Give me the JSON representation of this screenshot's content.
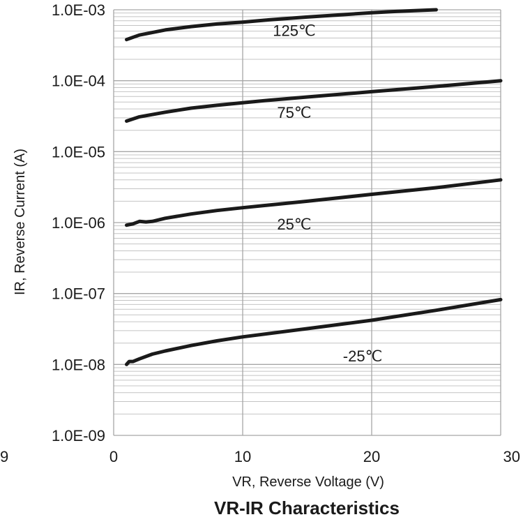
{
  "chart_data": {
    "type": "line",
    "title": "VR-IR Characteristics",
    "xlabel": "VR, Reverse Voltage (V)",
    "ylabel": "IR, Reverse Current (A)",
    "xlim": [
      0,
      30
    ],
    "ylim": [
      1e-09,
      0.001
    ],
    "yscale": "log",
    "grid": true,
    "x_ticks": [
      0,
      10,
      20,
      30
    ],
    "x_tick_labels": [
      "0",
      "10",
      "20",
      "30"
    ],
    "y_ticks": [
      1e-09,
      1e-08,
      1e-07,
      1e-06,
      1e-05,
      0.0001,
      0.001
    ],
    "y_tick_labels": [
      "1.0E-09",
      "1.0E-08",
      "1.0E-07",
      "1.0E-06",
      "1.0E-05",
      "1.0E-04",
      "1.0E-03"
    ],
    "clipped_leftmost_tick_fragment": "9",
    "series": [
      {
        "name": "125℃",
        "x": [
          1,
          2,
          4,
          6,
          8,
          10,
          12,
          15,
          18,
          20,
          22,
          25
        ],
        "y": [
          0.00038,
          0.00044,
          0.00052,
          0.00058,
          0.00063,
          0.00067,
          0.00072,
          0.00079,
          0.00086,
          0.00091,
          0.00095,
          0.001
        ]
      },
      {
        "name": "75℃",
        "x": [
          1,
          2,
          4,
          6,
          8,
          10,
          12,
          15,
          20,
          25,
          30
        ],
        "y": [
          2.7e-05,
          3.1e-05,
          3.6e-05,
          4.1e-05,
          4.5e-05,
          4.9e-05,
          5.3e-05,
          5.9e-05,
          7e-05,
          8.3e-05,
          0.0001
        ]
      },
      {
        "name": "25℃",
        "x": [
          1,
          1.5,
          2,
          2.5,
          3,
          4,
          6,
          8,
          10,
          15,
          20,
          25,
          30
        ],
        "y": [
          9.2e-07,
          9.6e-07,
          1.04e-06,
          1.02e-06,
          1.04e-06,
          1.15e-06,
          1.32e-06,
          1.48e-06,
          1.62e-06,
          2e-06,
          2.5e-06,
          3.1e-06,
          4e-06
        ]
      },
      {
        "name": "-25℃",
        "x": [
          1,
          1.2,
          1.5,
          2,
          3,
          4,
          6,
          8,
          10,
          15,
          20,
          25,
          30
        ],
        "y": [
          1e-08,
          1.1e-08,
          1.1e-08,
          1.2e-08,
          1.4e-08,
          1.55e-08,
          1.85e-08,
          2.15e-08,
          2.45e-08,
          3.2e-08,
          4.2e-08,
          5.8e-08,
          8.2e-08
        ]
      }
    ],
    "series_label_positions": [
      {
        "x": 14.0,
        "y": 0.00043
      },
      {
        "x": 14.0,
        "y": 3e-05
      },
      {
        "x": 14.0,
        "y": 8e-07
      },
      {
        "x": 19.3,
        "y": 1.1e-08
      }
    ]
  }
}
